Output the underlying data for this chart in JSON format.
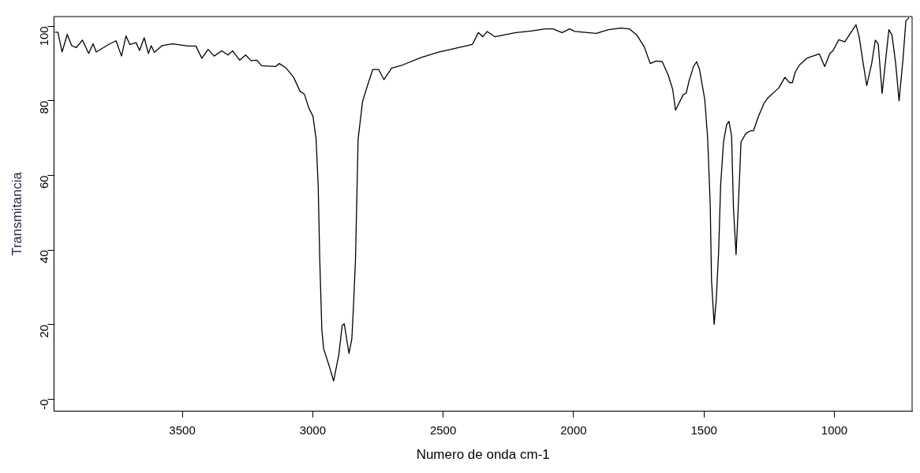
{
  "chart_data": {
    "type": "line",
    "xlabel": "Numero de onda cm-1",
    "ylabel": "Transmitancia",
    "x": [
      3988,
      3977,
      3961,
      3941,
      3924,
      3906,
      3883,
      3859,
      3842,
      3830,
      3783,
      3754,
      3733,
      3716,
      3701,
      3677,
      3664,
      3646,
      3630,
      3619,
      3607,
      3578,
      3537,
      3478,
      3448,
      3425,
      3401,
      3378,
      3349,
      3325,
      3307,
      3280,
      3257,
      3237,
      3214,
      3196,
      3143,
      3128,
      3102,
      3073,
      3049,
      3032,
      3014,
      2999,
      2987,
      2979,
      2973,
      2965,
      2958,
      2938,
      2920,
      2900,
      2887,
      2879,
      2861,
      2850,
      2844,
      2836,
      2826,
      2809,
      2791,
      2770,
      2747,
      2727,
      2697,
      2656,
      2586,
      2515,
      2497,
      2388,
      2365,
      2348,
      2331,
      2302,
      2222,
      2164,
      2107,
      2079,
      2044,
      2015,
      1995,
      1912,
      1866,
      1820,
      1786,
      1757,
      1729,
      1706,
      1683,
      1660,
      1637,
      1620,
      1609,
      1580,
      1568,
      1557,
      1540,
      1528,
      1517,
      1497,
      1486,
      1476,
      1471,
      1461,
      1453,
      1444,
      1436,
      1425,
      1413,
      1404,
      1394,
      1387,
      1377,
      1368,
      1358,
      1339,
      1321,
      1310,
      1293,
      1270,
      1255,
      1213,
      1190,
      1172,
      1161,
      1150,
      1134,
      1104,
      1058,
      1037,
      1018,
      1006,
      983,
      960,
      937,
      917,
      905,
      891,
      876,
      857,
      843,
      832,
      817,
      802,
      791,
      779,
      765,
      752,
      737,
      726,
      714
    ],
    "series": [
      {
        "color": "#000000",
        "values": [
          98.4,
          98.4,
          93.1,
          97.8,
          94.8,
          94.3,
          96.3,
          92.7,
          95.3,
          93.1,
          95.1,
          96.1,
          92.0,
          97.4,
          95.1,
          95.6,
          93.5,
          96.9,
          92.7,
          94.8,
          93.0,
          94.8,
          95.3,
          94.7,
          94.7,
          91.4,
          93.8,
          92.0,
          93.4,
          92.3,
          93.4,
          90.9,
          92.3,
          90.8,
          90.9,
          89.4,
          89.2,
          90.0,
          88.8,
          86.3,
          82.6,
          81.8,
          77.9,
          75.9,
          69.7,
          57.2,
          37.4,
          18.6,
          13.5,
          9.2,
          4.9,
          11.9,
          19.8,
          20.2,
          12.3,
          16.2,
          24.5,
          37.4,
          69.7,
          79.8,
          83.9,
          88.4,
          88.4,
          85.7,
          88.8,
          89.6,
          91.6,
          93.1,
          93.4,
          95.1,
          98.3,
          97.2,
          98.6,
          97.2,
          98.3,
          98.7,
          99.3,
          99.3,
          98.3,
          99.3,
          98.6,
          98.1,
          99.1,
          99.5,
          99.3,
          97.6,
          94.5,
          90.0,
          90.7,
          90.5,
          86.9,
          83.1,
          77.5,
          81.6,
          82.1,
          85.4,
          89.2,
          90.5,
          88.4,
          80.4,
          70.1,
          52.2,
          31.9,
          20.1,
          26.6,
          39.2,
          57.5,
          69.0,
          73.6,
          74.5,
          70.5,
          51.4,
          38.8,
          52.2,
          69.0,
          71.3,
          72.0,
          72.0,
          75.5,
          79.3,
          80.8,
          83.5,
          86.3,
          84.9,
          84.9,
          87.7,
          89.6,
          91.5,
          92.6,
          89.2,
          92.6,
          93.4,
          96.4,
          95.8,
          98.3,
          100.4,
          97.2,
          90.7,
          84.1,
          90.0,
          96.3,
          95.3,
          82.0,
          91.9,
          99.1,
          97.6,
          90.0,
          80.0,
          91.1,
          101.4,
          102.3
        ]
      }
    ],
    "xlim": [
      3992,
      702
    ],
    "ylim": [
      -3.2,
      102.6
    ],
    "xticks": [
      3500,
      3000,
      2500,
      2000,
      1500,
      1000
    ],
    "yticks": [
      {
        "value": 0,
        "label": "-0"
      },
      20,
      40,
      60,
      80,
      100
    ],
    "grid": false,
    "legend": false,
    "marker": "none",
    "line_style": "solid"
  }
}
